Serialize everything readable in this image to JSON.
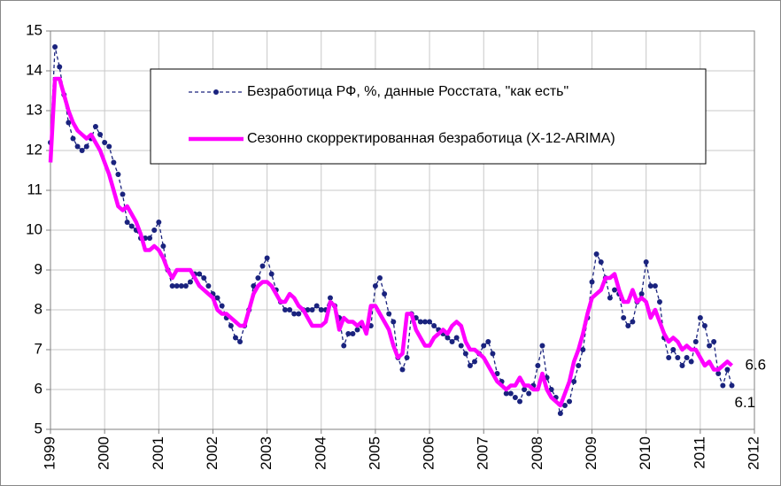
{
  "chart_data": {
    "type": "line",
    "x": [
      1999,
      1999.083,
      1999.167,
      1999.25,
      1999.333,
      1999.417,
      1999.5,
      1999.583,
      1999.667,
      1999.75,
      1999.833,
      1999.917,
      2000,
      2000.083,
      2000.167,
      2000.25,
      2000.333,
      2000.417,
      2000.5,
      2000.583,
      2000.667,
      2000.75,
      2000.833,
      2000.917,
      2001,
      2001.083,
      2001.167,
      2001.25,
      2001.333,
      2001.417,
      2001.5,
      2001.583,
      2001.667,
      2001.75,
      2001.833,
      2001.917,
      2002,
      2002.083,
      2002.167,
      2002.25,
      2002.333,
      2002.417,
      2002.5,
      2002.583,
      2002.667,
      2002.75,
      2002.833,
      2002.917,
      2003,
      2003.083,
      2003.167,
      2003.25,
      2003.333,
      2003.417,
      2003.5,
      2003.583,
      2003.667,
      2003.75,
      2003.833,
      2003.917,
      2004,
      2004.083,
      2004.167,
      2004.25,
      2004.333,
      2004.417,
      2004.5,
      2004.583,
      2004.667,
      2004.75,
      2004.833,
      2004.917,
      2005,
      2005.083,
      2005.167,
      2005.25,
      2005.333,
      2005.417,
      2005.5,
      2005.583,
      2005.667,
      2005.75,
      2005.833,
      2005.917,
      2006,
      2006.083,
      2006.167,
      2006.25,
      2006.333,
      2006.417,
      2006.5,
      2006.583,
      2006.667,
      2006.75,
      2006.833,
      2006.917,
      2007,
      2007.083,
      2007.167,
      2007.25,
      2007.333,
      2007.417,
      2007.5,
      2007.583,
      2007.667,
      2007.75,
      2007.833,
      2007.917,
      2008,
      2008.083,
      2008.167,
      2008.25,
      2008.333,
      2008.417,
      2008.5,
      2008.583,
      2008.667,
      2008.75,
      2008.833,
      2008.917,
      2009,
      2009.083,
      2009.167,
      2009.25,
      2009.333,
      2009.417,
      2009.5,
      2009.583,
      2009.667,
      2009.75,
      2009.833,
      2009.917,
      2010,
      2010.083,
      2010.167,
      2010.25,
      2010.333,
      2010.417,
      2010.5,
      2010.583,
      2010.667,
      2010.75,
      2010.833,
      2010.917,
      2011,
      2011.083,
      2011.167,
      2011.25,
      2011.333,
      2011.417,
      2011.5,
      2011.583
    ],
    "series": [
      {
        "name": "Безработица РФ, %, данные Росстата, \"как есть\"",
        "color": "#1a237e",
        "style": "dashed-dots",
        "values": [
          12.2,
          14.6,
          14.1,
          13.4,
          12.7,
          12.3,
          12.1,
          12.0,
          12.1,
          12.3,
          12.6,
          12.4,
          12.2,
          12.1,
          11.7,
          11.4,
          10.9,
          10.2,
          10.1,
          10.0,
          9.8,
          9.8,
          9.8,
          10.0,
          10.2,
          9.6,
          9.0,
          8.6,
          8.6,
          8.6,
          8.6,
          8.7,
          8.9,
          8.9,
          8.8,
          8.6,
          8.4,
          8.3,
          8.1,
          7.8,
          7.6,
          7.3,
          7.2,
          7.6,
          8.0,
          8.6,
          8.8,
          9.1,
          9.3,
          8.9,
          8.5,
          8.2,
          8.0,
          8.0,
          7.9,
          7.9,
          8.0,
          8.0,
          8.0,
          8.1,
          8.0,
          8.0,
          8.3,
          8.1,
          7.8,
          7.1,
          7.4,
          7.4,
          7.5,
          7.6,
          7.5,
          7.6,
          8.6,
          8.8,
          8.4,
          7.9,
          7.7,
          6.8,
          6.5,
          6.8,
          7.9,
          7.8,
          7.7,
          7.7,
          7.7,
          7.6,
          7.5,
          7.4,
          7.3,
          7.2,
          7.3,
          7.1,
          6.9,
          6.6,
          6.7,
          6.9,
          7.1,
          7.2,
          6.9,
          6.4,
          6.2,
          5.9,
          5.9,
          5.8,
          5.7,
          6.0,
          5.9,
          6.1,
          6.6,
          7.1,
          6.3,
          6.0,
          5.8,
          5.4,
          5.6,
          5.7,
          6.2,
          6.6,
          7.0,
          7.8,
          8.7,
          9.4,
          9.2,
          8.8,
          8.3,
          8.5,
          8.4,
          7.8,
          7.6,
          7.7,
          8.2,
          8.4,
          9.2,
          8.6,
          8.6,
          8.2,
          7.3,
          6.8,
          7.0,
          6.8,
          6.6,
          6.8,
          6.7,
          7.2,
          7.8,
          7.6,
          7.1,
          7.2,
          6.4,
          6.1,
          6.5,
          6.1
        ]
      },
      {
        "name": "Сезонно скорректированная безработица (X-12-ARIMA)",
        "color": "#ff00ff",
        "style": "thick",
        "values": [
          11.7,
          13.8,
          13.8,
          13.4,
          13.0,
          12.7,
          12.5,
          12.4,
          12.3,
          12.4,
          12.2,
          12.0,
          11.7,
          11.4,
          11.0,
          10.6,
          10.5,
          10.6,
          10.4,
          10.2,
          9.9,
          9.5,
          9.5,
          9.6,
          9.5,
          9.3,
          9.0,
          8.8,
          9.0,
          9.0,
          9.0,
          9.0,
          8.8,
          8.6,
          8.5,
          8.4,
          8.3,
          8.0,
          7.9,
          7.9,
          7.8,
          7.7,
          7.6,
          7.6,
          8.0,
          8.4,
          8.6,
          8.7,
          8.7,
          8.6,
          8.4,
          8.2,
          8.2,
          8.4,
          8.3,
          8.1,
          8.0,
          7.8,
          7.6,
          7.6,
          7.6,
          7.7,
          8.2,
          8.1,
          7.5,
          7.8,
          7.7,
          7.7,
          7.6,
          7.7,
          7.4,
          8.1,
          8.1,
          7.9,
          7.7,
          7.5,
          7.1,
          6.8,
          6.9,
          7.9,
          7.9,
          7.5,
          7.3,
          7.1,
          7.1,
          7.3,
          7.4,
          7.5,
          7.4,
          7.6,
          7.7,
          7.6,
          7.2,
          7.0,
          7.0,
          6.9,
          6.8,
          6.6,
          6.4,
          6.2,
          6.1,
          6.0,
          6.1,
          6.1,
          6.3,
          6.1,
          6.1,
          6.0,
          6.0,
          6.4,
          6.0,
          5.8,
          5.7,
          5.6,
          5.9,
          6.2,
          6.7,
          7.0,
          7.4,
          7.9,
          8.3,
          8.4,
          8.5,
          8.8,
          8.8,
          8.9,
          8.5,
          8.2,
          8.2,
          8.5,
          8.2,
          8.3,
          8.2,
          7.8,
          8.0,
          7.7,
          7.4,
          7.2,
          7.3,
          7.2,
          7.0,
          7.1,
          7.0,
          7.0,
          6.8,
          6.6,
          6.7,
          6.5,
          6.5,
          6.6,
          6.7,
          6.6
        ]
      }
    ],
    "annotations": [
      "6.6",
      "6.1"
    ],
    "xlim": [
      1999,
      2012
    ],
    "xticks": [
      1999,
      2000,
      2001,
      2002,
      2003,
      2004,
      2005,
      2006,
      2007,
      2008,
      2009,
      2010,
      2011,
      2012
    ],
    "ylim": [
      5,
      15
    ],
    "yticks": [
      5,
      6,
      7,
      8,
      9,
      10,
      11,
      12,
      13,
      14,
      15
    ],
    "grid": true
  }
}
